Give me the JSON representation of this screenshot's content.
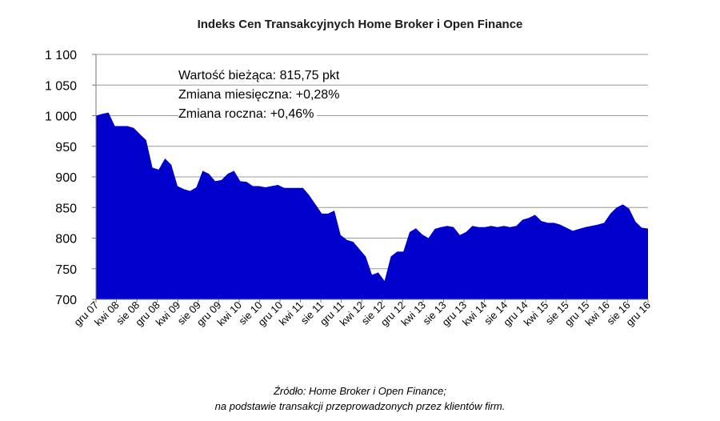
{
  "chart_data": {
    "type": "area",
    "title": "Indeks Cen Transakcyjnych Home Broker i Open Finance",
    "xlabel": "",
    "ylabel": "",
    "ylim": [
      700,
      1100
    ],
    "yticks": [
      700,
      750,
      800,
      850,
      900,
      950,
      1000,
      1050,
      1100
    ],
    "ytick_labels": [
      "700",
      "750",
      "800",
      "850",
      "900",
      "950",
      "1 000",
      "1 050",
      "1 100"
    ],
    "xtick_labels": [
      "gru 07",
      "kwi 08",
      "sie 08",
      "gru 08",
      "kwi 09",
      "sie 09",
      "gru 09",
      "kwi 10",
      "sie 10",
      "gru 10",
      "kwi 11",
      "sie 11",
      "gru 11",
      "kwi 12",
      "sie 12",
      "gru 12",
      "kwi 13",
      "sie 13",
      "gru 13",
      "kwi 14",
      "sie 14",
      "gru 14",
      "kwi 15",
      "sie 15",
      "gru 15",
      "kwi 16",
      "sie 16",
      "gru 16"
    ],
    "grid": true,
    "fill_color": "#0000cc",
    "grid_color": "#999999",
    "annotations": [
      "Wartość bieżąca: 815,75 pkt",
      "Zmiana miesięczna: +0,28%",
      "Zmiana roczna: +0,46%"
    ],
    "series": [
      {
        "values": [
          1000,
          1003,
          1005,
          983,
          983,
          983,
          980,
          970,
          960,
          915,
          912,
          930,
          920,
          885,
          880,
          877,
          883,
          910,
          905,
          893,
          895,
          905,
          910,
          893,
          892,
          885,
          885,
          883,
          885,
          887,
          882,
          882,
          882,
          882,
          870,
          855,
          840,
          840,
          845,
          805,
          797,
          794,
          782,
          770,
          740,
          744,
          730,
          770,
          778,
          778,
          810,
          816,
          806,
          800,
          815,
          818,
          820,
          818,
          805,
          810,
          820,
          818,
          818,
          820,
          818,
          820,
          818,
          820,
          830,
          833,
          838,
          828,
          825,
          825,
          822,
          817,
          812,
          815,
          818,
          820,
          822,
          825,
          840,
          850,
          855,
          848,
          827,
          817,
          815.75
        ]
      }
    ]
  },
  "source": {
    "line1": "Źródło: Home Broker i Open Finance;",
    "line2": "na podstawie transakcji przeprowadzonych przez klientów firm."
  }
}
